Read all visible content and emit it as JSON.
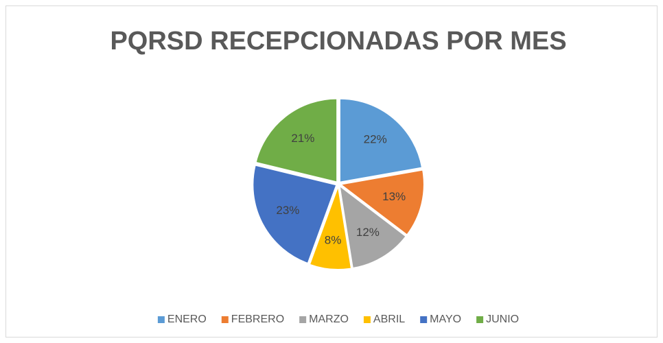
{
  "chart_data": {
    "type": "pie",
    "title": "PQRSD RECEPCIONADAS POR MES",
    "categories": [
      "ENERO",
      "FEBRERO",
      "MARZO",
      "ABRIL",
      "MAYO",
      "JUNIO"
    ],
    "values": [
      22,
      13,
      12,
      8,
      23,
      21
    ],
    "value_labels": [
      "22%",
      "13%",
      "12%",
      "8%",
      "23%",
      "21%"
    ],
    "colors": [
      "#5b9bd5",
      "#ed7d31",
      "#a5a5a5",
      "#ffc000",
      "#4472c4",
      "#70ad47"
    ],
    "legend": "bottom"
  }
}
